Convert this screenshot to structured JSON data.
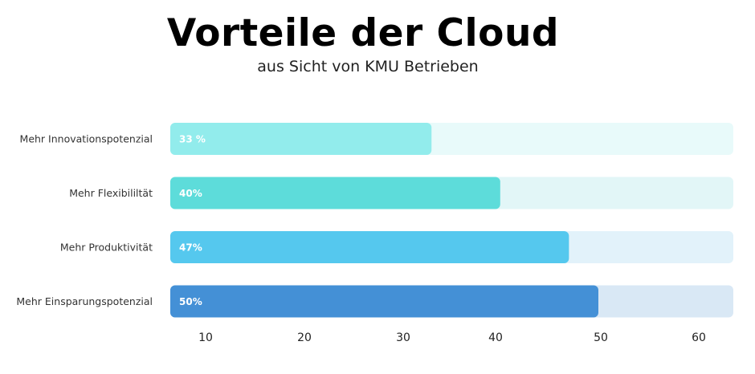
{
  "chart_data": {
    "type": "bar",
    "orientation": "horizontal",
    "title": "Vorteile der Cloud",
    "subtitle": "aus Sicht von KMU Betrieben",
    "xlabel": "",
    "ylabel": "",
    "categories": [
      "Mehr Innovationspotenzial",
      "Mehr Flexibililtät",
      "Mehr Produktivität",
      "Mehr Einsparungspotenzial"
    ],
    "values": [
      33,
      40,
      47,
      50
    ],
    "value_labels": [
      "33 %",
      "40%",
      "47%",
      "50%"
    ],
    "x_ticks": [
      10,
      20,
      30,
      40,
      50,
      60
    ],
    "bar_colors": [
      "#92ECEC",
      "#5DDCDA",
      "#55C8EE",
      "#4490D6"
    ],
    "track_colors": [
      "#E8FAFA",
      "#E2F6F7",
      "#E2F2FA",
      "#D9E8F5"
    ],
    "grid": false,
    "legend": "none"
  }
}
